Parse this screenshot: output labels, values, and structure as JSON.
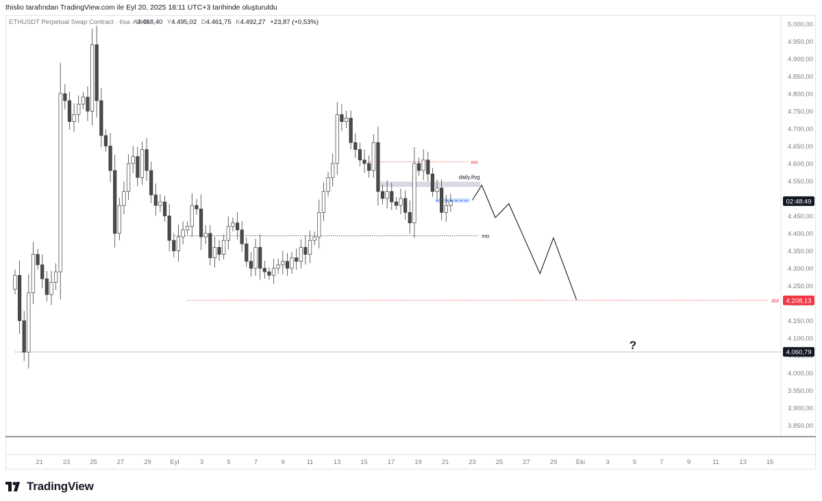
{
  "header": {
    "credit": "thislio tarafından TradingView.com ile Eyl 20, 2025 18:11 UTC+3 tarihinde oluşturuldu"
  },
  "legend": {
    "symbol": "ETHUSDT Perpetual Swap Contract · 6sa · OKX",
    "open_label": "A",
    "open": "4.468,40",
    "high_label": "Y",
    "high": "4.495,02",
    "low_label": "D",
    "low": "4.461,75",
    "close_label": "K",
    "close": "4.492,27",
    "change": "+23,87 (+0,53%)"
  },
  "colors": {
    "up_fill": "#ffffff",
    "down_fill": "#4a4a4a",
    "candle_border": "#3a3a3a",
    "dol_line": "#f23645",
    "wo_line": "#f23645",
    "mo_line": "#555555",
    "low_line": "#555555",
    "ifvg_zone": "#d1d4dc",
    "blue_zone": "#bbd6fb",
    "projection": "#131722"
  },
  "chart_data": {
    "type": "candlestick",
    "interval": "6h",
    "y_ticks": [
      "5.000,00",
      "4.950,00",
      "4.900,00",
      "4.850,00",
      "4.800,00",
      "4.750,00",
      "4.700,00",
      "4.650,00",
      "4.600,00",
      "4.550,00",
      "4.500,00",
      "4.450,00",
      "4.400,00",
      "4.350,00",
      "4.300,00",
      "4.250,00",
      "4.200,00",
      "4.150,00",
      "4.100,00",
      "4.050,00",
      "4.000,00",
      "3.950,00",
      "3.900,00",
      "3.850,00"
    ],
    "y_tick_values": [
      5000,
      4950,
      4900,
      4850,
      4800,
      4750,
      4700,
      4650,
      4600,
      4550,
      4500,
      4450,
      4400,
      4350,
      4300,
      4250,
      4200,
      4150,
      4100,
      4050,
      4000,
      3950,
      3900,
      3850
    ],
    "ylim": [
      3820,
      5025
    ],
    "x_labels": [
      "21",
      "23",
      "25",
      "27",
      "29",
      "Eyl",
      "3",
      "5",
      "7",
      "9",
      "11",
      "13",
      "15",
      "17",
      "19",
      "21",
      "23",
      "25",
      "27",
      "29",
      "Eki",
      "3",
      "5",
      "7",
      "9",
      "11",
      "13",
      "15"
    ],
    "x_label_days": [
      -10,
      -8,
      -6,
      -4,
      -2,
      0,
      2,
      4,
      6,
      8,
      10,
      12,
      14,
      16,
      18,
      20,
      22,
      24,
      26,
      28,
      30,
      32,
      34,
      36,
      38,
      40,
      42,
      44
    ],
    "closes": [
      4280,
      4150,
      4060,
      4230,
      4340,
      4310,
      4270,
      4225,
      4260,
      4290,
      4800,
      4780,
      4720,
      4740,
      4770,
      4790,
      4750,
      4940,
      4780,
      4680,
      4650,
      4580,
      4400,
      4480,
      4520,
      4600,
      4620,
      4560,
      4640,
      4580,
      4510,
      4480,
      4490,
      4450,
      4380,
      4350,
      4390,
      4410,
      4420,
      4480,
      4470,
      4390,
      4400,
      4330,
      4360,
      4340,
      4380,
      4420,
      4430,
      4410,
      4370,
      4320,
      4300,
      4360,
      4300,
      4290,
      4280,
      4300,
      4310,
      4320,
      4300,
      4330,
      4320,
      4360,
      4340,
      4380,
      4390,
      4460,
      4520,
      4560,
      4600,
      4740,
      4720,
      4730,
      4660,
      4640,
      4610,
      4600,
      4580,
      4660,
      4520,
      4500,
      4520,
      4490,
      4480,
      4500,
      4460,
      4430,
      4600,
      4580,
      4610,
      4570,
      4520,
      4530,
      4460,
      4480,
      4492
    ],
    "final_close": 4492.27,
    "levels": [
      {
        "name": "wo",
        "price": 4605
      },
      {
        "name": "mo",
        "price": 4393
      },
      {
        "name": "dol",
        "price": 4208.13,
        "price_label": "4.208,13"
      },
      {
        "name": "low",
        "price": 4060.79,
        "price_label": "4.060,79"
      }
    ],
    "zones": [
      {
        "name": "daily.ifvg",
        "low": 4533,
        "high": 4548,
        "start_day": 15.2,
        "end_day": 22.6
      },
      {
        "name": "6h fvg",
        "low": 4488,
        "high": 4500,
        "start_day": 19.3,
        "end_day": 21.8
      }
    ],
    "projection": [
      {
        "day": 22.0,
        "price": 4495
      },
      {
        "day": 22.7,
        "price": 4538
      },
      {
        "day": 23.7,
        "price": 4445
      },
      {
        "day": 24.7,
        "price": 4485
      },
      {
        "day": 27.0,
        "price": 4285
      },
      {
        "day": 28.0,
        "price": 4387
      },
      {
        "day": 29.7,
        "price": 4210
      }
    ],
    "countdown": "02:48:49",
    "question_mark": "?",
    "grid": false
  },
  "footer": {
    "brand": "TradingView"
  }
}
